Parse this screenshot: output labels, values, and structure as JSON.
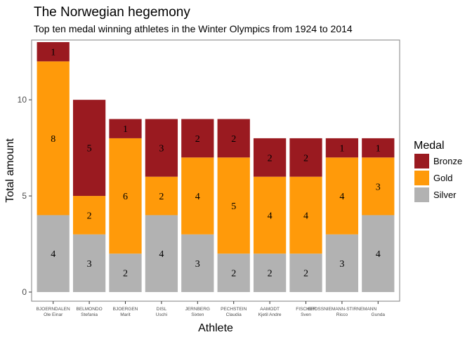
{
  "chart_data": {
    "type": "bar",
    "stacked": true,
    "title": "The Norwegian hegemony",
    "subtitle": "Top ten medal winning athletes in the Winter Olympics from 1924 to 2014",
    "xlabel": "Athlete",
    "ylabel": "Total amount",
    "ylim": [
      0,
      13
    ],
    "yticks": [
      0,
      5,
      10
    ],
    "grid": false,
    "legend_position": "right",
    "categories": [
      {
        "surname": "BJOERNDALEN",
        "given": "Ole Einar"
      },
      {
        "surname": "BELMONDO",
        "given": "Stefania"
      },
      {
        "surname": "BJOERGEN",
        "given": "Marit"
      },
      {
        "surname": "DISL",
        "given": "Uschi"
      },
      {
        "surname": "JERNBERG",
        "given": "Sixten"
      },
      {
        "surname": "PECHSTEIN",
        "given": "Claudia"
      },
      {
        "surname": "AAMODT",
        "given": "Kjetil Andre"
      },
      {
        "surname": "FISCHER",
        "given": "Sven"
      },
      {
        "surname": "GROSSNIEMANN-STIRNEMANN",
        "given": "Ricco"
      },
      {
        "surname": "",
        "given": "Gunda"
      }
    ],
    "series": [
      {
        "name": "Silver",
        "color": "#b2b2b2",
        "values": [
          4,
          3,
          2,
          4,
          3,
          2,
          2,
          2,
          3,
          4
        ]
      },
      {
        "name": "Gold",
        "color": "#ff9a0a",
        "values": [
          8,
          2,
          6,
          2,
          4,
          5,
          4,
          4,
          4,
          3
        ]
      },
      {
        "name": "Bronze",
        "color": "#9a1a20",
        "values": [
          1,
          5,
          1,
          3,
          2,
          2,
          2,
          2,
          1,
          1
        ]
      }
    ],
    "legend": {
      "title": "Medal",
      "order": [
        "Bronze",
        "Gold",
        "Silver"
      ]
    },
    "panel_border_color": "#7f7f7f"
  }
}
